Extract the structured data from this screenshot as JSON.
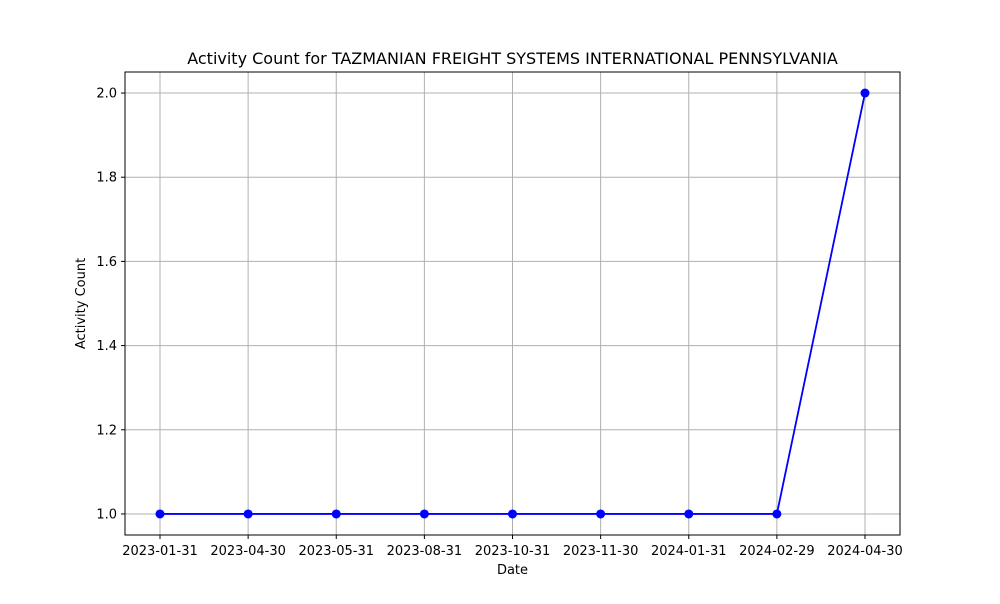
{
  "chart_data": {
    "type": "line",
    "title": "Activity Count for TAZMANIAN FREIGHT SYSTEMS INTERNATIONAL PENNSYLVANIA",
    "xlabel": "Date",
    "ylabel": "Activity Count",
    "x": [
      "2023-01-31",
      "2023-04-30",
      "2023-05-31",
      "2023-08-31",
      "2023-10-31",
      "2023-11-30",
      "2024-01-31",
      "2024-02-29",
      "2024-04-30"
    ],
    "series": [
      {
        "values": [
          1,
          1,
          1,
          1,
          1,
          1,
          1,
          1,
          2
        ],
        "color": "#0000ff",
        "marker": "circle"
      }
    ],
    "ylim": [
      0.95,
      2.05
    ],
    "yticks": [
      1.0,
      1.2,
      1.4,
      1.6,
      1.8,
      2.0
    ],
    "ytick_labels": [
      "1.0",
      "1.2",
      "1.4",
      "1.6",
      "1.8",
      "2.0"
    ],
    "grid": true,
    "grid_color": "#b0b0b0",
    "legend": false
  }
}
